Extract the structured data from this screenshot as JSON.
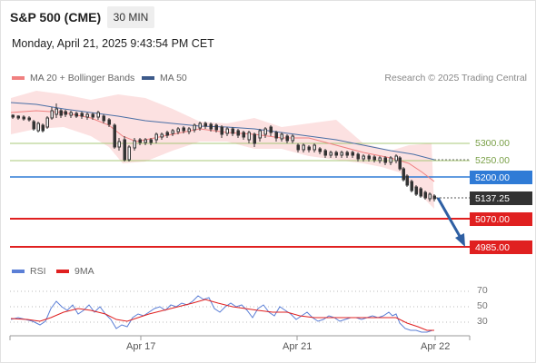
{
  "header": {
    "title": "S&P 500 (CME)",
    "timeframe": "30 MIN",
    "datetime": "Monday, April 21, 2025 9:43:54 PM CET"
  },
  "legend": {
    "ma20": "MA 20 + Bollinger Bands",
    "ma50": "MA 50",
    "credit": "Research © 2025 Trading Central",
    "rsi": "RSI",
    "ma9": "9MA"
  },
  "colors": {
    "ma20": "#f08080",
    "ma50": "#4a6fa5",
    "band": "#fbd6d6",
    "green": "#a8c878",
    "blue": "#2f7bd6",
    "red": "#e02020",
    "dark": "#333333",
    "rsi": "#5b7fd6"
  },
  "levels": {
    "r2": "5300.00",
    "r1": "5250.00",
    "pivot": "5200.00",
    "last": "5137.25",
    "s1": "5070.00",
    "s2": "4985.00"
  },
  "rsi_levels": [
    "70",
    "50",
    "30"
  ],
  "time_axis": [
    "Apr 17",
    "Apr 21",
    "Apr 22"
  ]
}
